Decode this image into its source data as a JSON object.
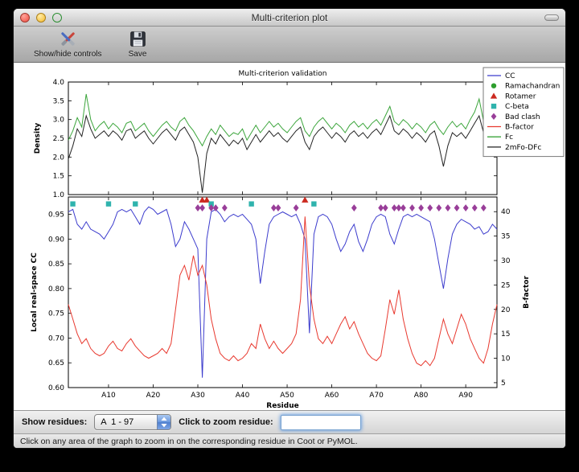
{
  "window": {
    "title": "Multi-criterion plot"
  },
  "toolbar": {
    "items": [
      {
        "label": "Show/hide controls",
        "icon": "crossed-tools-icon"
      },
      {
        "label": "Save",
        "icon": "floppy-disk-icon"
      }
    ]
  },
  "controls": {
    "show_residues_label": "Show residues:",
    "residue_range_value": "A  1 - 97",
    "zoom_label": "Click to zoom residue:",
    "zoom_input_value": ""
  },
  "status_bar": {
    "text": "Click on any area of the graph to zoom in on the corresponding residue in Coot or PyMOL."
  },
  "chart_data": [
    {
      "panel": "density",
      "type": "line",
      "title": "Multi-criterion validation",
      "ylabel": "Density",
      "ylim": [
        1.0,
        4.0
      ],
      "yticks": [
        1.0,
        1.5,
        2.0,
        2.5,
        3.0,
        3.5,
        4.0
      ],
      "xlim": [
        1,
        97
      ],
      "legend": [
        {
          "label": "CC",
          "glyph": "line",
          "color": "#3c3ccd"
        },
        {
          "label": "Ramachandran",
          "glyph": "circle",
          "color": "#2e9e2e"
        },
        {
          "label": "Rotamer",
          "glyph": "triangle",
          "color": "#cc2a20"
        },
        {
          "label": "C-beta",
          "glyph": "square",
          "color": "#2fb3ad"
        },
        {
          "label": "Bad clash",
          "glyph": "diamond",
          "color": "#993e99"
        },
        {
          "label": "B-factor",
          "glyph": "line",
          "color": "#e8392f"
        },
        {
          "label": "Fc",
          "glyph": "line",
          "color": "#3ba53b"
        },
        {
          "label": "2mFo-DFc",
          "glyph": "line",
          "color": "#222222"
        }
      ],
      "series": [
        {
          "name": "Fc",
          "color": "#3ba53b",
          "values": [
            2.45,
            2.7,
            3.05,
            2.8,
            3.68,
            3.0,
            2.7,
            2.85,
            2.95,
            2.75,
            2.9,
            2.8,
            2.65,
            2.9,
            2.95,
            2.7,
            2.8,
            2.9,
            2.7,
            2.55,
            2.7,
            2.85,
            2.95,
            2.8,
            2.7,
            2.95,
            3.05,
            2.85,
            2.7,
            2.5,
            2.3,
            2.55,
            2.75,
            2.6,
            2.85,
            2.7,
            2.55,
            2.65,
            2.6,
            2.75,
            2.45,
            2.65,
            2.85,
            2.65,
            2.8,
            2.95,
            2.8,
            2.9,
            2.75,
            2.65,
            2.8,
            2.95,
            3.05,
            2.7,
            2.55,
            2.8,
            2.95,
            3.05,
            2.9,
            2.75,
            2.9,
            2.8,
            2.65,
            2.85,
            2.95,
            2.8,
            2.9,
            2.75,
            2.9,
            3.0,
            2.85,
            3.1,
            3.35,
            2.95,
            2.85,
            3.0,
            2.9,
            2.75,
            2.9,
            2.8,
            2.65,
            2.85,
            2.95,
            2.75,
            2.6,
            2.8,
            2.95,
            2.8,
            2.9,
            2.75,
            3.0,
            3.2,
            3.55,
            2.95,
            2.75,
            3.05,
            2.9
          ]
        },
        {
          "name": "2mFo-DFc",
          "color": "#222222",
          "values": [
            1.95,
            2.3,
            2.75,
            2.55,
            3.1,
            2.75,
            2.5,
            2.6,
            2.7,
            2.55,
            2.7,
            2.6,
            2.45,
            2.7,
            2.75,
            2.5,
            2.6,
            2.7,
            2.5,
            2.35,
            2.5,
            2.65,
            2.75,
            2.6,
            2.45,
            2.7,
            2.8,
            2.6,
            2.4,
            2.0,
            1.05,
            2.1,
            2.5,
            2.35,
            2.6,
            2.45,
            2.3,
            2.45,
            2.35,
            2.5,
            2.2,
            2.4,
            2.6,
            2.4,
            2.55,
            2.7,
            2.55,
            2.65,
            2.5,
            2.4,
            2.55,
            2.7,
            2.8,
            2.4,
            2.2,
            2.55,
            2.7,
            2.8,
            2.65,
            2.5,
            2.65,
            2.55,
            2.4,
            2.6,
            2.7,
            2.55,
            2.65,
            2.5,
            2.65,
            2.75,
            2.6,
            2.85,
            3.1,
            2.7,
            2.6,
            2.75,
            2.65,
            2.5,
            2.65,
            2.55,
            2.4,
            2.6,
            2.7,
            2.3,
            1.75,
            2.3,
            2.65,
            2.55,
            2.65,
            2.5,
            2.7,
            2.9,
            3.1,
            2.65,
            2.5,
            2.75,
            2.6
          ]
        }
      ]
    },
    {
      "panel": "cc-bfactor",
      "type": "line",
      "xlabel": "Residue",
      "ylabel_left": "Local real-space CC",
      "ylabel_right": "B-factor",
      "ylim_left": [
        0.6,
        0.985
      ],
      "ylim_right": [
        4,
        43
      ],
      "yticks_left": [
        0.6,
        0.65,
        0.7,
        0.75,
        0.8,
        0.85,
        0.9,
        0.95
      ],
      "yticks_right": [
        5,
        10,
        15,
        20,
        25,
        30,
        35,
        40
      ],
      "xlim": [
        1,
        97
      ],
      "xticks": [
        10,
        20,
        30,
        40,
        50,
        60,
        70,
        80,
        90
      ],
      "xtick_labels": [
        "A10",
        "A20",
        "A30",
        "A40",
        "A50",
        "A60",
        "A70",
        "A80",
        "A90"
      ],
      "series": [
        {
          "name": "CC",
          "axis": "left",
          "color": "#3c3ccd",
          "values": [
            0.955,
            0.96,
            0.93,
            0.92,
            0.935,
            0.92,
            0.915,
            0.91,
            0.9,
            0.915,
            0.93,
            0.955,
            0.96,
            0.955,
            0.96,
            0.945,
            0.93,
            0.955,
            0.965,
            0.96,
            0.95,
            0.955,
            0.96,
            0.93,
            0.885,
            0.9,
            0.935,
            0.92,
            0.9,
            0.88,
            0.62,
            0.9,
            0.955,
            0.96,
            0.95,
            0.935,
            0.945,
            0.95,
            0.945,
            0.95,
            0.94,
            0.93,
            0.9,
            0.81,
            0.875,
            0.93,
            0.945,
            0.95,
            0.955,
            0.95,
            0.945,
            0.95,
            0.93,
            0.9,
            0.71,
            0.91,
            0.945,
            0.95,
            0.945,
            0.93,
            0.9,
            0.875,
            0.89,
            0.915,
            0.93,
            0.895,
            0.875,
            0.9,
            0.93,
            0.945,
            0.95,
            0.945,
            0.91,
            0.89,
            0.92,
            0.945,
            0.95,
            0.945,
            0.95,
            0.945,
            0.94,
            0.935,
            0.9,
            0.85,
            0.8,
            0.86,
            0.91,
            0.93,
            0.94,
            0.935,
            0.93,
            0.92,
            0.925,
            0.91,
            0.915,
            0.93,
            0.92
          ]
        },
        {
          "name": "B-factor",
          "axis": "right",
          "color": "#e8392f",
          "values": [
            21,
            18,
            15,
            13,
            14,
            12,
            11,
            10.5,
            11,
            12.5,
            13.5,
            12,
            11.5,
            13,
            14,
            12.5,
            11.5,
            10.5,
            10,
            10.5,
            11,
            12,
            11,
            13,
            20,
            27,
            29,
            26,
            31,
            27,
            29,
            25,
            18,
            14,
            11,
            10,
            9.5,
            10.5,
            9.5,
            10,
            11,
            13,
            12,
            17,
            14,
            12,
            13.5,
            12,
            11,
            12,
            13,
            15,
            22,
            39,
            25,
            18,
            14,
            13,
            14.5,
            13,
            15,
            17,
            18.5,
            16,
            17.5,
            15,
            13,
            11,
            10,
            9.5,
            10.5,
            16,
            22,
            19,
            24,
            18,
            14,
            11,
            9,
            8.5,
            9.5,
            8.5,
            10,
            14,
            18,
            15,
            13,
            16,
            19,
            17,
            14,
            12,
            10,
            9,
            12,
            17,
            21
          ]
        }
      ],
      "markers": [
        {
          "name": "Ramachandran",
          "shape": "circle",
          "color": "#2e9e2e",
          "y_cc": 0.98,
          "residues": []
        },
        {
          "name": "Rotamer",
          "shape": "triangle",
          "color": "#cc2a20",
          "y_cc": 0.979,
          "residues": [
            31,
            32,
            54
          ]
        },
        {
          "name": "C-beta",
          "shape": "square",
          "color": "#2fb3ad",
          "y_cc": 0.971,
          "residues": [
            2,
            10,
            16,
            33,
            42,
            56
          ]
        },
        {
          "name": "Bad clash",
          "shape": "diamond",
          "color": "#993e99",
          "y_cc": 0.963,
          "residues": [
            30,
            31,
            33,
            34,
            36,
            47,
            48,
            52,
            65,
            71,
            72,
            74,
            75,
            76,
            78,
            80,
            82,
            84,
            86,
            88,
            90,
            92,
            94
          ]
        }
      ]
    }
  ]
}
